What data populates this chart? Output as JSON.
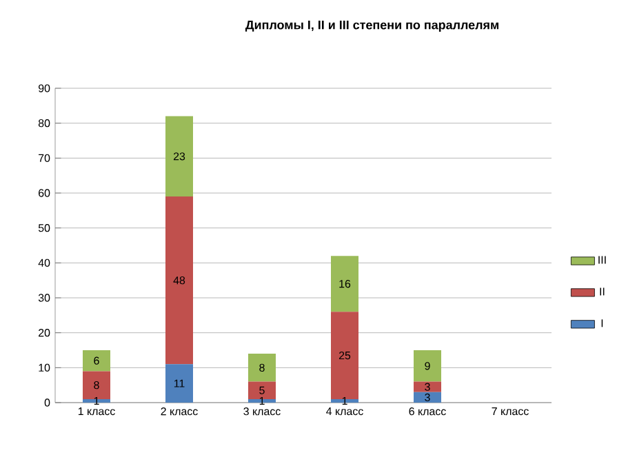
{
  "chart_data": {
    "type": "bar",
    "stacked": true,
    "title": "Дипломы I, II и III степени по параллелям",
    "categories": [
      "1 класс",
      "2 класс",
      "3 класс",
      "4 класс",
      "6 класс",
      "7 класс"
    ],
    "series": [
      {
        "name": "I",
        "color": "#4f81bd",
        "values": [
          1,
          11,
          1,
          1,
          3,
          null
        ]
      },
      {
        "name": "II",
        "color": "#c0504d",
        "values": [
          8,
          48,
          5,
          25,
          3,
          null
        ]
      },
      {
        "name": "III",
        "color": "#9bbb59",
        "values": [
          6,
          23,
          8,
          16,
          9,
          null
        ]
      }
    ],
    "ylim": [
      0,
      90
    ],
    "yticks": [
      0,
      10,
      20,
      30,
      40,
      50,
      60,
      70,
      80,
      90
    ],
    "grid": "y",
    "legend": "right",
    "data_labels": true
  }
}
